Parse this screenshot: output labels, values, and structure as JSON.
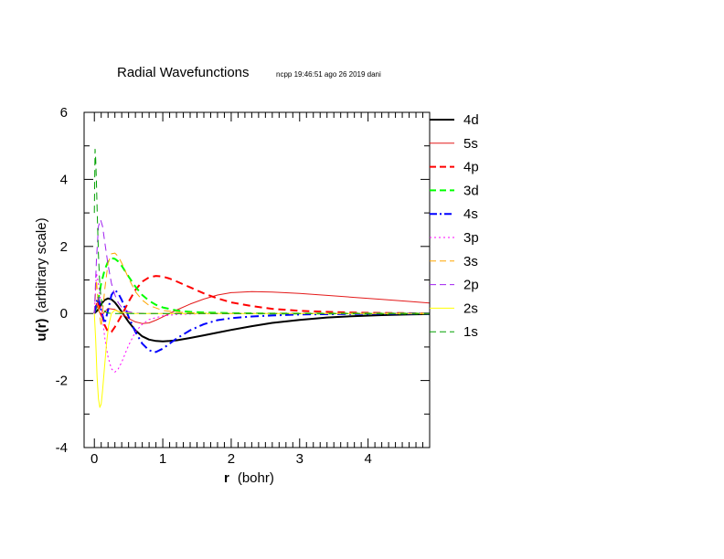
{
  "chart_data": {
    "type": "line",
    "title": "Radial Wavefunctions",
    "subtitle": "ncpp 19:46:51 ago 26 2019 dani",
    "xlabel_symbol": "r",
    "xlabel_unit": "(bohr)",
    "ylabel_symbol": "u(r)",
    "ylabel_unit": "(arbitrary scale)",
    "xlim": [
      -0.15,
      4.9
    ],
    "ylim": [
      -4,
      6
    ],
    "xticks": [
      "0",
      "1",
      "2",
      "3",
      "4"
    ],
    "yticks": [
      "-4",
      "-2",
      "0",
      "2",
      "4",
      "6"
    ],
    "legend_position": "right",
    "series": [
      {
        "name": "4d",
        "color": "#000000",
        "dash": "solid",
        "width": 2,
        "x": [
          0,
          0.05,
          0.1,
          0.15,
          0.2,
          0.25,
          0.3,
          0.35,
          0.4,
          0.5,
          0.6,
          0.7,
          0.8,
          0.9,
          1.0,
          1.1,
          1.2,
          1.4,
          1.6,
          1.8,
          2.0,
          2.3,
          2.6,
          3.0,
          3.4,
          3.8,
          4.2,
          4.6,
          4.9
        ],
        "y": [
          0,
          0.1,
          0.28,
          0.4,
          0.45,
          0.42,
          0.33,
          0.2,
          0.05,
          -0.25,
          -0.5,
          -0.68,
          -0.78,
          -0.82,
          -0.83,
          -0.82,
          -0.8,
          -0.73,
          -0.65,
          -0.57,
          -0.49,
          -0.38,
          -0.28,
          -0.19,
          -0.12,
          -0.08,
          -0.05,
          -0.03,
          -0.02
        ]
      },
      {
        "name": "5s",
        "color": "#e41a1a",
        "dash": "solid",
        "width": 1,
        "x": [
          0,
          0.03,
          0.06,
          0.1,
          0.15,
          0.2,
          0.3,
          0.4,
          0.5,
          0.6,
          0.7,
          0.8,
          0.9,
          1.0,
          1.2,
          1.4,
          1.6,
          1.8,
          2.0,
          2.3,
          2.6,
          3.0,
          3.4,
          3.8,
          4.2,
          4.6,
          4.9
        ],
        "y": [
          0,
          0.3,
          0.12,
          -0.08,
          0.05,
          0.15,
          0.12,
          0.0,
          -0.15,
          -0.25,
          -0.3,
          -0.28,
          -0.2,
          -0.1,
          0.1,
          0.28,
          0.43,
          0.55,
          0.62,
          0.65,
          0.64,
          0.6,
          0.54,
          0.48,
          0.42,
          0.36,
          0.31
        ]
      },
      {
        "name": "4p",
        "color": "#ff0000",
        "dash": "dashed",
        "width": 2,
        "x": [
          0,
          0.05,
          0.1,
          0.15,
          0.2,
          0.25,
          0.3,
          0.4,
          0.5,
          0.6,
          0.7,
          0.8,
          0.9,
          1.0,
          1.1,
          1.2,
          1.4,
          1.6,
          1.8,
          2.0,
          2.3,
          2.6,
          3.0,
          3.5,
          4.0,
          4.5,
          4.9
        ],
        "y": [
          0,
          0.35,
          0.0,
          -0.35,
          -0.55,
          -0.55,
          -0.4,
          -0.05,
          0.35,
          0.7,
          0.95,
          1.08,
          1.12,
          1.1,
          1.04,
          0.96,
          0.78,
          0.6,
          0.45,
          0.33,
          0.22,
          0.14,
          0.08,
          0.04,
          0.02,
          0.01,
          0.0
        ]
      },
      {
        "name": "3d",
        "color": "#00ff00",
        "dash": "dashed",
        "width": 2,
        "x": [
          0,
          0.05,
          0.1,
          0.15,
          0.2,
          0.25,
          0.3,
          0.35,
          0.4,
          0.5,
          0.6,
          0.7,
          0.8,
          0.9,
          1.0,
          1.2,
          1.4,
          1.6,
          2.0,
          2.5,
          3.0,
          4.0,
          4.9
        ],
        "y": [
          0,
          0.35,
          0.9,
          1.3,
          1.55,
          1.65,
          1.63,
          1.55,
          1.42,
          1.1,
          0.8,
          0.55,
          0.38,
          0.26,
          0.18,
          0.09,
          0.05,
          0.03,
          0.01,
          0.0,
          0.0,
          0.0,
          0.0
        ]
      },
      {
        "name": "4s",
        "color": "#0000ff",
        "dash": "dashdot",
        "width": 2,
        "x": [
          0,
          0.05,
          0.1,
          0.15,
          0.2,
          0.25,
          0.3,
          0.35,
          0.4,
          0.5,
          0.6,
          0.7,
          0.8,
          0.9,
          1.0,
          1.1,
          1.2,
          1.4,
          1.6,
          1.8,
          2.0,
          2.3,
          2.6,
          3.0,
          3.5,
          4.0,
          4.9
        ],
        "y": [
          0,
          0.5,
          0.1,
          -0.3,
          0.1,
          0.55,
          0.7,
          0.6,
          0.4,
          -0.1,
          -0.55,
          -0.9,
          -1.1,
          -1.15,
          -1.05,
          -0.9,
          -0.75,
          -0.5,
          -0.32,
          -0.2,
          -0.14,
          -0.09,
          -0.06,
          -0.03,
          -0.02,
          -0.01,
          0.0
        ]
      },
      {
        "name": "3p",
        "color": "#ff00ff",
        "dash": "dotted",
        "width": 1,
        "x": [
          0,
          0.03,
          0.06,
          0.1,
          0.15,
          0.2,
          0.25,
          0.3,
          0.35,
          0.4,
          0.45,
          0.5,
          0.6,
          0.7,
          0.8,
          1.0,
          1.2,
          1.5,
          2.0,
          3.0,
          4.9
        ],
        "y": [
          0,
          1.2,
          0.9,
          0.2,
          -0.7,
          -1.3,
          -1.65,
          -1.75,
          -1.65,
          -1.45,
          -1.2,
          -0.95,
          -0.55,
          -0.32,
          -0.18,
          -0.07,
          -0.03,
          -0.01,
          0.0,
          0.0,
          0.0
        ]
      },
      {
        "name": "3s",
        "color": "#ffa500",
        "dash": "dashed",
        "width": 1,
        "x": [
          0,
          0.03,
          0.06,
          0.1,
          0.15,
          0.2,
          0.25,
          0.3,
          0.35,
          0.4,
          0.5,
          0.6,
          0.7,
          0.8,
          1.0,
          1.2,
          1.5,
          2.0,
          3.0,
          4.9
        ],
        "y": [
          0,
          1.0,
          0.2,
          -0.4,
          0.7,
          1.5,
          1.78,
          1.8,
          1.7,
          1.5,
          1.05,
          0.65,
          0.4,
          0.24,
          0.09,
          0.04,
          0.01,
          0.0,
          0.0,
          0.0
        ]
      },
      {
        "name": "2p",
        "color": "#a020f0",
        "dash": "dashed",
        "width": 1,
        "x": [
          0,
          0.03,
          0.06,
          0.09,
          0.12,
          0.15,
          0.2,
          0.25,
          0.3,
          0.35,
          0.4,
          0.5,
          0.6,
          0.8,
          1.0,
          1.5,
          2.0,
          3.0,
          4.9
        ],
        "y": [
          0,
          1.6,
          2.6,
          2.8,
          2.6,
          2.15,
          1.45,
          0.9,
          0.55,
          0.32,
          0.18,
          0.05,
          0.01,
          0.0,
          0.0,
          0.0,
          0.0,
          0.0,
          0.0
        ]
      },
      {
        "name": "2s",
        "color": "#ffff00",
        "dash": "solid",
        "width": 1,
        "x": [
          0,
          0.02,
          0.04,
          0.06,
          0.08,
          0.1,
          0.12,
          0.15,
          0.18,
          0.21,
          0.25,
          0.3,
          0.35,
          0.4,
          0.5,
          0.6,
          0.8,
          1.0,
          2.0,
          3.0,
          4.9
        ],
        "y": [
          0,
          -0.8,
          -1.9,
          -2.55,
          -2.8,
          -2.7,
          -2.3,
          -1.55,
          -0.85,
          -0.35,
          0.0,
          0.1,
          0.06,
          0.03,
          0.01,
          0.0,
          0.0,
          0.0,
          0.0,
          0.0,
          0.0
        ]
      },
      {
        "name": "1s",
        "color": "#00a000",
        "dash": "dashed",
        "width": 1,
        "x": [
          0,
          0.01,
          0.02,
          0.03,
          0.04,
          0.05,
          0.06,
          0.07,
          0.08,
          0.1,
          0.12,
          0.15,
          0.2,
          0.3,
          0.5,
          1.0,
          2.0,
          3.0,
          4.9
        ],
        "y": [
          3.0,
          4.9,
          4.6,
          3.9,
          3.15,
          2.4,
          1.75,
          1.25,
          0.85,
          0.4,
          0.18,
          0.06,
          0.01,
          0.0,
          0.0,
          0.0,
          0.0,
          0.0,
          0.0
        ]
      }
    ]
  }
}
